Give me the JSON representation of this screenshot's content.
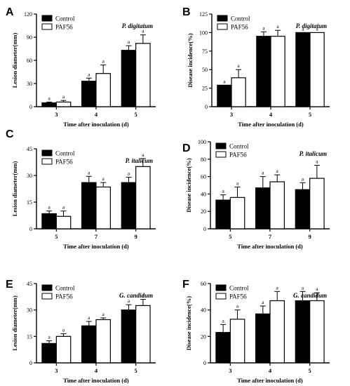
{
  "colors": {
    "control": "#000000",
    "paf56": "#ffffff",
    "axis": "#000000"
  },
  "legend": {
    "control": "Control",
    "paf56": "PAF56"
  },
  "chart_data": [
    {
      "id": "A",
      "type": "bar",
      "panel_letter": "A",
      "species": "P. digitatum",
      "ylabel": "Lesion diameter(mm)",
      "xlabel": "Time after inoculation (d)",
      "ylim": [
        0,
        120
      ],
      "yticks": [
        0,
        30,
        60,
        90,
        120
      ],
      "categories": [
        "3",
        "4",
        "5"
      ],
      "series": [
        {
          "name": "Control",
          "values": [
            5,
            33,
            73
          ],
          "errors": [
            1,
            4,
            6
          ]
        },
        {
          "name": "PAF56",
          "values": [
            6,
            43,
            82
          ],
          "errors": [
            2,
            11,
            11
          ]
        }
      ],
      "significance": [
        [
          "a",
          "a"
        ],
        [
          "a",
          "a"
        ],
        [
          "a",
          "a"
        ]
      ]
    },
    {
      "id": "B",
      "type": "bar",
      "panel_letter": "B",
      "species": "P. digitatum",
      "ylabel": "Disease incidence(%)",
      "xlabel": "Time after inoculation (d)",
      "ylim": [
        0,
        125
      ],
      "yticks": [
        0,
        25,
        50,
        75,
        100,
        125
      ],
      "categories": [
        "3",
        "4",
        "5"
      ],
      "series": [
        {
          "name": "Control",
          "values": [
            29,
            95,
            100
          ],
          "errors": [
            0,
            6,
            0
          ]
        },
        {
          "name": "PAF56",
          "values": [
            39,
            95,
            100
          ],
          "errors": [
            11,
            8,
            0
          ]
        }
      ],
      "significance": [
        [
          "a",
          "a"
        ],
        [
          "a",
          "a"
        ],
        [
          "a",
          "a"
        ]
      ]
    },
    {
      "id": "C",
      "type": "bar",
      "panel_letter": "C",
      "species": "P. italicum",
      "ylabel": "Lesion diameter(mm)",
      "xlabel": "Time after inoculation (d)",
      "ylim": [
        0,
        45
      ],
      "yticks": [
        0,
        15,
        30,
        45
      ],
      "categories": [
        "5",
        "7",
        "9"
      ],
      "series": [
        {
          "name": "Control",
          "values": [
            8.5,
            26,
            26
          ],
          "errors": [
            1.5,
            3.5,
            3
          ]
        },
        {
          "name": "PAF56",
          "values": [
            7,
            23.5,
            35
          ],
          "errors": [
            3,
            2.5,
            4.5
          ]
        }
      ],
      "significance": [
        [
          "a",
          "a"
        ],
        [
          "a",
          "a"
        ],
        [
          "a",
          "a"
        ]
      ]
    },
    {
      "id": "D",
      "type": "bar",
      "panel_letter": "D",
      "species": "P. italicum",
      "ylabel": "Disease incidence(%)",
      "xlabel": "Time after inoculation (d)",
      "ylim": [
        0,
        100
      ],
      "yticks": [
        0,
        20,
        40,
        60,
        80,
        100
      ],
      "categories": [
        "5",
        "7",
        "9"
      ],
      "series": [
        {
          "name": "Control",
          "values": [
            33,
            47,
            45
          ],
          "errors": [
            6,
            13,
            8
          ]
        },
        {
          "name": "PAF56",
          "values": [
            36,
            54,
            58
          ],
          "errors": [
            12,
            8,
            15
          ]
        }
      ],
      "significance": [
        [
          "a",
          "a"
        ],
        [
          "a",
          "a"
        ],
        [
          "a",
          "a"
        ]
      ]
    },
    {
      "id": "E",
      "type": "bar",
      "panel_letter": "E",
      "species": "G. candidum",
      "ylabel": "Lesion diameter(mm)",
      "xlabel": "Time after inoculation (d)",
      "ylim": [
        0,
        45
      ],
      "yticks": [
        0,
        15,
        30,
        45
      ],
      "categories": [
        "3",
        "4",
        "5"
      ],
      "series": [
        {
          "name": "Control",
          "values": [
            11,
            21,
            30
          ],
          "errors": [
            1.5,
            2.5,
            3
          ]
        },
        {
          "name": "PAF56",
          "values": [
            15,
            24.5,
            32.5
          ],
          "errors": [
            1.5,
            1,
            3.5
          ]
        }
      ],
      "significance": [
        [
          "a",
          "a"
        ],
        [
          "a",
          "a"
        ],
        [
          "a",
          "a"
        ]
      ]
    },
    {
      "id": "F",
      "type": "bar",
      "panel_letter": "F",
      "species": "G. candidum",
      "ylabel": "Disease incidence(%)",
      "xlabel": "Time after inoculation (d)",
      "ylim": [
        0,
        60
      ],
      "yticks": [
        0,
        20,
        40,
        60
      ],
      "categories": [
        "3",
        "4",
        "5"
      ],
      "series": [
        {
          "name": "Control",
          "values": [
            23,
            37,
            47
          ],
          "errors": [
            6,
            6,
            7
          ]
        },
        {
          "name": "PAF56",
          "values": [
            33,
            47,
            47
          ],
          "errors": [
            7,
            7,
            6
          ]
        }
      ],
      "significance": [
        [
          "a",
          "a"
        ],
        [
          "a",
          "a"
        ],
        [
          "a",
          "a"
        ]
      ]
    }
  ]
}
